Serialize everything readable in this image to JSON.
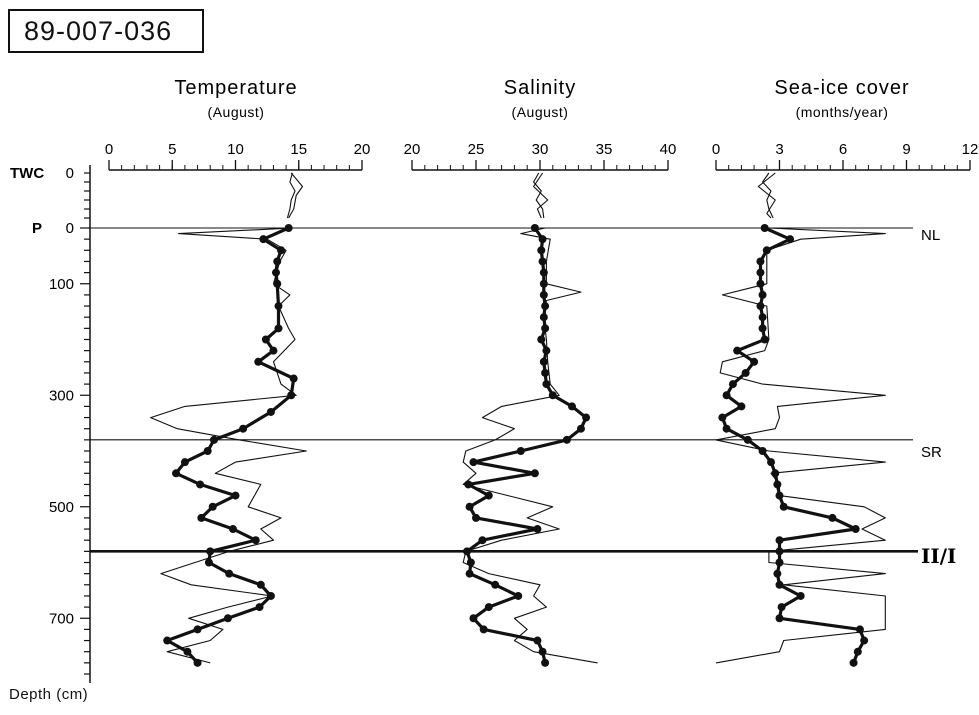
{
  "core_id": "89-007-036",
  "depth_axis_label": "Depth (cm)",
  "twc_label": "TWC",
  "p_label": "P",
  "depth_ticks": [
    {
      "label": "0",
      "section": "TWC",
      "depth": 0
    },
    {
      "label": "0",
      "section": "P",
      "depth": 0
    },
    {
      "label": "100",
      "section": "P",
      "depth": 100
    },
    {
      "label": "300",
      "section": "P",
      "depth": 300
    },
    {
      "label": "500",
      "section": "P",
      "depth": 500
    },
    {
      "label": "700",
      "section": "P",
      "depth": 700
    }
  ],
  "horizons": [
    {
      "label": "NL",
      "depth": 0,
      "section": "P",
      "weight": "thin"
    },
    {
      "label": "SR",
      "depth": 380,
      "section": "P",
      "weight": "thin"
    },
    {
      "label": "II/I",
      "depth": 580,
      "section": "P",
      "weight": "bold"
    }
  ],
  "chart_data": [
    {
      "type": "line",
      "title": "Temperature",
      "subtitle": "(August)",
      "xlim": [
        0,
        20
      ],
      "tick_labels": [
        "0",
        "5",
        "10",
        "15",
        "20"
      ],
      "minor_tick_step": 1,
      "twc": {
        "bold": {
          "depth": [
            0,
            10,
            20,
            30,
            40,
            50
          ],
          "value": [
            14.5,
            14.3,
            14.7,
            14.4,
            14.3,
            14.1
          ]
        },
        "thin": {
          "depth": [
            0,
            15,
            25,
            40,
            50
          ],
          "value": [
            14.4,
            15.3,
            14.8,
            14.6,
            14.2
          ]
        }
      },
      "series": [
        {
          "style": "bold",
          "depth": [
            0,
            20,
            40,
            60,
            80,
            100,
            140,
            180,
            200,
            220,
            240,
            270,
            300,
            330,
            360,
            380,
            400,
            420,
            440,
            460,
            480,
            500,
            520,
            540,
            560,
            580,
            600,
            620,
            640,
            660,
            680,
            700,
            720,
            740,
            760,
            780
          ],
          "value": [
            14.2,
            12.2,
            13.6,
            13.3,
            13.2,
            13.3,
            13.4,
            13.4,
            12.4,
            13.0,
            11.8,
            14.6,
            14.4,
            12.8,
            10.6,
            8.3,
            7.8,
            6.0,
            5.3,
            7.2,
            10.0,
            8.2,
            7.3,
            9.8,
            11.6,
            8.0,
            7.9,
            9.5,
            12.0,
            12.8,
            11.9,
            9.4,
            7.0,
            4.6,
            6.2,
            7.0
          ]
        },
        {
          "style": "thin",
          "depth": [
            0,
            10,
            20,
            40,
            60,
            100,
            120,
            140,
            180,
            200,
            240,
            280,
            300,
            320,
            340,
            360,
            380,
            400,
            420,
            440,
            460,
            500,
            520,
            540,
            560,
            580,
            600,
            620,
            640,
            660,
            680,
            700,
            720,
            740,
            760,
            780
          ],
          "value": [
            14.5,
            5.5,
            12.5,
            14.0,
            13.5,
            13.0,
            14.3,
            13.4,
            14.2,
            14.7,
            13.0,
            13.6,
            14.8,
            6.0,
            3.3,
            5.4,
            10.3,
            15.6,
            10.0,
            8.4,
            12.0,
            11.0,
            13.6,
            12.0,
            13.0,
            9.5,
            6.8,
            4.1,
            6.5,
            12.9,
            9.4,
            6.3,
            9.0,
            8.0,
            4.6,
            8.0
          ]
        }
      ]
    },
    {
      "type": "line",
      "title": "Salinity",
      "subtitle": "(August)",
      "xlim": [
        20,
        40
      ],
      "tick_labels": [
        "20",
        "25",
        "30",
        "35",
        "40"
      ],
      "minor_tick_step": 1,
      "twc": {
        "bold": {
          "depth": [
            0,
            10,
            20,
            30,
            40,
            50
          ],
          "value": [
            29.9,
            29.5,
            30.1,
            29.7,
            30.2,
            30.3
          ]
        },
        "thin": {
          "depth": [
            0,
            15,
            30,
            40,
            50
          ],
          "value": [
            30.2,
            29.5,
            30.6,
            29.8,
            30.1
          ]
        }
      },
      "series": [
        {
          "style": "bold",
          "depth": [
            0,
            20,
            40,
            60,
            80,
            100,
            120,
            140,
            160,
            180,
            200,
            220,
            240,
            260,
            280,
            300,
            320,
            340,
            360,
            380,
            400,
            420,
            440,
            460,
            480,
            500,
            520,
            540,
            560,
            580,
            600,
            620,
            640,
            660,
            680,
            700,
            720,
            740,
            760,
            780
          ],
          "value": [
            29.6,
            30.2,
            30.1,
            30.2,
            30.3,
            30.3,
            30.3,
            30.4,
            30.3,
            30.4,
            30.1,
            30.5,
            30.3,
            30.4,
            30.5,
            31.0,
            32.5,
            33.6,
            33.2,
            32.1,
            28.5,
            24.8,
            29.6,
            24.4,
            26.0,
            24.5,
            25.0,
            29.8,
            25.5,
            24.3,
            24.6,
            24.5,
            26.5,
            28.3,
            26.0,
            24.8,
            25.6,
            29.8,
            30.2,
            30.4
          ]
        },
        {
          "style": "thin",
          "depth": [
            0,
            10,
            20,
            60,
            100,
            115,
            130,
            160,
            200,
            240,
            280,
            300,
            320,
            340,
            360,
            380,
            400,
            420,
            440,
            460,
            480,
            500,
            520,
            540,
            560,
            580,
            600,
            620,
            640,
            660,
            680,
            700,
            720,
            740,
            760,
            780
          ],
          "value": [
            30.4,
            28.5,
            30.8,
            30.5,
            30.5,
            33.2,
            30.5,
            30.3,
            30.5,
            30.6,
            30.8,
            31.5,
            27.0,
            25.5,
            28.0,
            26.5,
            24.2,
            24.0,
            25.0,
            24.0,
            27.5,
            31.0,
            29.0,
            31.5,
            27.0,
            24.2,
            24.0,
            26.0,
            30.0,
            29.5,
            30.5,
            28.0,
            29.0,
            28.0,
            29.5,
            34.5
          ]
        }
      ]
    },
    {
      "type": "line",
      "title": "Sea-ice cover",
      "subtitle": "(months/year)",
      "xlim": [
        0,
        12
      ],
      "tick_labels": [
        "0",
        "3",
        "6",
        "9",
        "12"
      ],
      "minor_tick_step": 0.6,
      "twc": {
        "bold": {
          "depth": [
            0,
            10,
            20,
            30,
            40,
            50
          ],
          "value": [
            2.5,
            2.2,
            2.6,
            2.4,
            2.5,
            2.7
          ]
        },
        "thin": {
          "depth": [
            0,
            15,
            30,
            45,
            50
          ],
          "value": [
            2.8,
            2.0,
            2.8,
            2.4,
            2.6
          ]
        }
      },
      "series": [
        {
          "style": "bold",
          "depth": [
            0,
            20,
            40,
            60,
            80,
            100,
            120,
            140,
            160,
            180,
            200,
            220,
            240,
            260,
            280,
            300,
            320,
            340,
            360,
            380,
            400,
            420,
            440,
            460,
            480,
            500,
            520,
            540,
            560,
            580,
            600,
            620,
            640,
            660,
            680,
            700,
            720,
            740,
            760,
            780
          ],
          "value": [
            2.3,
            3.5,
            2.4,
            2.1,
            2.1,
            2.1,
            2.2,
            2.1,
            2.2,
            2.2,
            2.3,
            1.0,
            1.8,
            1.4,
            0.8,
            0.5,
            1.2,
            0.3,
            0.5,
            1.5,
            2.2,
            2.6,
            2.8,
            2.9,
            3.0,
            3.2,
            5.5,
            6.6,
            3.0,
            3.0,
            3.0,
            2.9,
            3.0,
            4.0,
            3.1,
            3.0,
            6.8,
            7.0,
            6.7,
            6.5
          ]
        },
        {
          "style": "thin",
          "depth": [
            0,
            10,
            20,
            40,
            60,
            100,
            120,
            140,
            200,
            220,
            240,
            260,
            280,
            300,
            320,
            340,
            360,
            380,
            400,
            420,
            440,
            460,
            480,
            500,
            520,
            540,
            560,
            580,
            600,
            620,
            640,
            660,
            680,
            700,
            720,
            740,
            760,
            780
          ],
          "value": [
            2.5,
            8.0,
            4.0,
            2.4,
            2.4,
            2.4,
            0.3,
            2.4,
            2.5,
            2.3,
            0.3,
            0.2,
            2.2,
            8.0,
            2.9,
            3.0,
            2.8,
            0.0,
            2.5,
            8.0,
            2.6,
            3.0,
            3.0,
            7.0,
            8.0,
            6.9,
            8.0,
            2.5,
            2.5,
            8.0,
            3.2,
            8.0,
            8.0,
            8.0,
            8.0,
            3.2,
            3.0,
            0.0
          ]
        }
      ]
    }
  ]
}
